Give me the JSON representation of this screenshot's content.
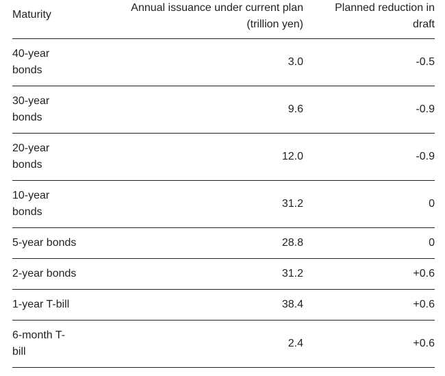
{
  "table": {
    "headers": {
      "maturity": "Maturity",
      "issuance": "Annual issuance under current plan (trillion yen)",
      "reduction": "Planned reduction in draft"
    },
    "rows": [
      {
        "maturity": "40-year bonds",
        "issuance": "3.0",
        "reduction": "-0.5"
      },
      {
        "maturity": "30-year bonds",
        "issuance": "9.6",
        "reduction": "-0.9"
      },
      {
        "maturity": "20-year bonds",
        "issuance": "12.0",
        "reduction": "-0.9"
      },
      {
        "maturity": "10-year bonds",
        "issuance": "31.2",
        "reduction": "0"
      },
      {
        "maturity": "5-year bonds",
        "issuance": "28.8",
        "reduction": "0"
      },
      {
        "maturity": "2-year bonds",
        "issuance": "31.2",
        "reduction": "+0.6"
      },
      {
        "maturity": "1-year T-bill",
        "issuance": "38.4",
        "reduction": "+0.6"
      },
      {
        "maturity": "6-month T-bill",
        "issuance": "2.4",
        "reduction": "+0.6"
      }
    ]
  }
}
